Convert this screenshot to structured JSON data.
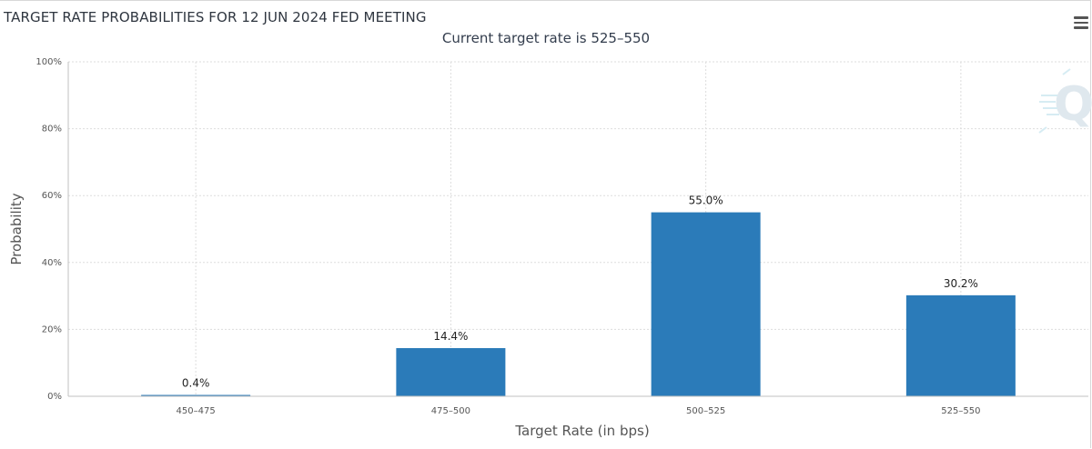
{
  "header": {
    "title": "TARGET RATE PROBABILITIES FOR 12 JUN 2024 FED MEETING",
    "subtitle": "Current target rate is 525–550"
  },
  "colors": {
    "bar": "#2b7bb9",
    "grid": "#dddddd",
    "axis": "#c0c0c0"
  },
  "icons": {
    "menu": "hamburger-menu-icon",
    "watermark": "q-logo-watermark"
  },
  "chart_data": {
    "type": "bar",
    "categories": [
      "450–475",
      "475–500",
      "500–525",
      "525–550"
    ],
    "values": [
      0.4,
      14.4,
      55.0,
      30.2
    ],
    "data_labels": [
      "0.4%",
      "14.4%",
      "55.0%",
      "30.2%"
    ],
    "title": "TARGET RATE PROBABILITIES FOR 12 JUN 2024 FED MEETING",
    "subtitle": "Current target rate is 525–550",
    "xlabel": "Target Rate (in bps)",
    "ylabel": "Probability",
    "ylim": [
      0,
      100
    ],
    "yticks": [
      0,
      20,
      40,
      60,
      80,
      100
    ],
    "ytick_labels": [
      "0%",
      "20%",
      "40%",
      "60%",
      "80%",
      "100%"
    ],
    "grid": true,
    "legend": "none"
  }
}
